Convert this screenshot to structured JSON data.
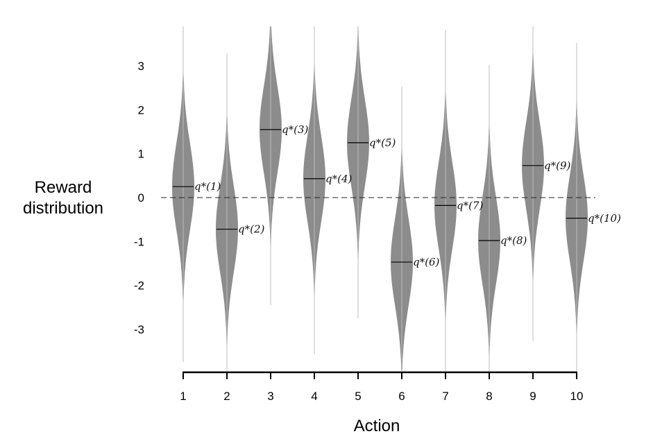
{
  "chart_data": {
    "type": "violin",
    "xlabel": "Action",
    "ylabel_lines": [
      "Reward",
      "distribution"
    ],
    "categories": [
      "1",
      "2",
      "3",
      "4",
      "5",
      "6",
      "7",
      "8",
      "9",
      "10"
    ],
    "yticks": [
      "3",
      "2",
      "1",
      "0",
      "-1",
      "-2",
      "-3"
    ],
    "ylim": [
      -4,
      4
    ],
    "means": [
      0.25,
      -0.72,
      1.55,
      0.43,
      1.25,
      -1.47,
      -0.18,
      -0.98,
      0.73,
      -0.47
    ],
    "labels": [
      "q*(1)",
      "q*(2)",
      "q*(3)",
      "q*(4)",
      "q*(5)",
      "q*(6)",
      "q*(7)",
      "q*(8)",
      "q*(9)",
      "q*(10)"
    ],
    "std": 1,
    "zero_line": "dashed",
    "fill_color": "#8c8c8c"
  }
}
